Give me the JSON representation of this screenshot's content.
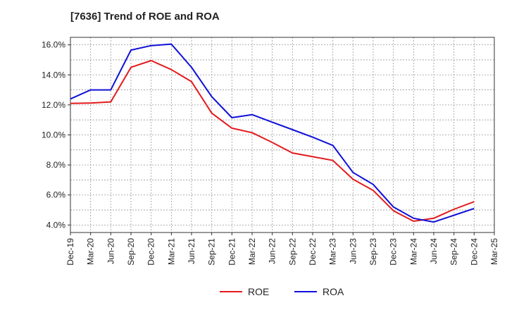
{
  "chart_data": {
    "type": "line",
    "title": "[7636]  Trend of ROE and ROA",
    "xlabel": "",
    "ylabel": "",
    "x_tick_labels": [
      "Dec-19",
      "Mar-20",
      "Jun-20",
      "Sep-20",
      "Dec-20",
      "Mar-21",
      "Jun-21",
      "Sep-21",
      "Dec-21",
      "Mar-22",
      "Jun-22",
      "Sep-22",
      "Dec-22",
      "Mar-23",
      "Jun-23",
      "Sep-23",
      "Dec-23",
      "Mar-24",
      "Jun-24",
      "Sep-24",
      "Dec-24",
      "Mar-25"
    ],
    "y_tick_labels": [
      "4.0%",
      "6.0%",
      "8.0%",
      "10.0%",
      "12.0%",
      "14.0%",
      "16.0%"
    ],
    "y_ticks": [
      4,
      6,
      8,
      10,
      12,
      14,
      16
    ],
    "ylim": [
      3.5,
      16.5
    ],
    "grid": true,
    "legend_position": "bottom-center",
    "series": [
      {
        "name": "ROE",
        "color": "#e41a1c",
        "values": [
          12.1,
          12.12,
          12.2,
          14.5,
          14.95,
          14.35,
          13.55,
          11.45,
          10.45,
          10.15,
          9.5,
          8.8,
          8.55,
          8.3,
          7.05,
          6.3,
          4.95,
          4.25,
          4.45,
          5.05,
          5.55,
          null
        ]
      },
      {
        "name": "ROA",
        "color": "#1010d8",
        "values": [
          12.4,
          13.0,
          13.0,
          15.65,
          15.95,
          16.05,
          14.5,
          12.55,
          11.15,
          11.35,
          10.85,
          10.35,
          9.85,
          9.3,
          7.5,
          6.7,
          5.2,
          4.45,
          4.2,
          4.65,
          5.1,
          null
        ]
      }
    ]
  }
}
